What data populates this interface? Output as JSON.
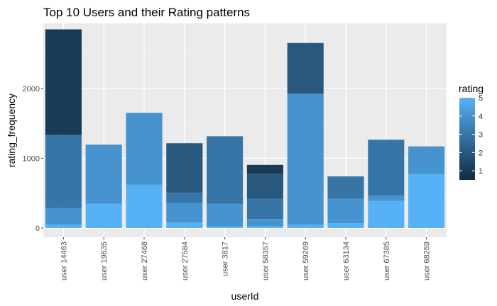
{
  "chart_data": {
    "type": "bar",
    "stacked": true,
    "title": "Top 10 Users and their Rating patterns",
    "xlabel": "userId",
    "ylabel": "rating_frequency",
    "categories": [
      "user 14463",
      "user 19635",
      "user 27468",
      "user 27584",
      "user 3817",
      "user 58357",
      "user 59269",
      "user 63134",
      "user 67385",
      "user 68259"
    ],
    "ylim": [
      0,
      2900
    ],
    "yticks": [
      0,
      1000,
      2000
    ],
    "grid": true,
    "legend": {
      "title": "rating",
      "position": "right",
      "labels": [
        "5",
        "4",
        "3",
        "2",
        "1"
      ],
      "low_color": "#132b43",
      "high_color": "#56b1f7"
    },
    "series": [
      {
        "name": "5",
        "values": [
          50,
          350,
          620,
          80,
          25,
          30,
          50,
          70,
          390,
          775
        ]
      },
      {
        "name": "4",
        "values": [
          235,
          845,
          1030,
          280,
          325,
          100,
          1875,
          350,
          75,
          395
        ]
      },
      {
        "name": "3",
        "values": [
          1050,
          0,
          0,
          145,
          965,
          290,
          0,
          320,
          800,
          0
        ]
      },
      {
        "name": "2",
        "values": [
          0,
          0,
          0,
          710,
          0,
          360,
          725,
          0,
          0,
          0
        ]
      },
      {
        "name": "1",
        "values": [
          1510,
          0,
          0,
          0,
          0,
          125,
          0,
          0,
          0,
          0
        ]
      }
    ]
  }
}
